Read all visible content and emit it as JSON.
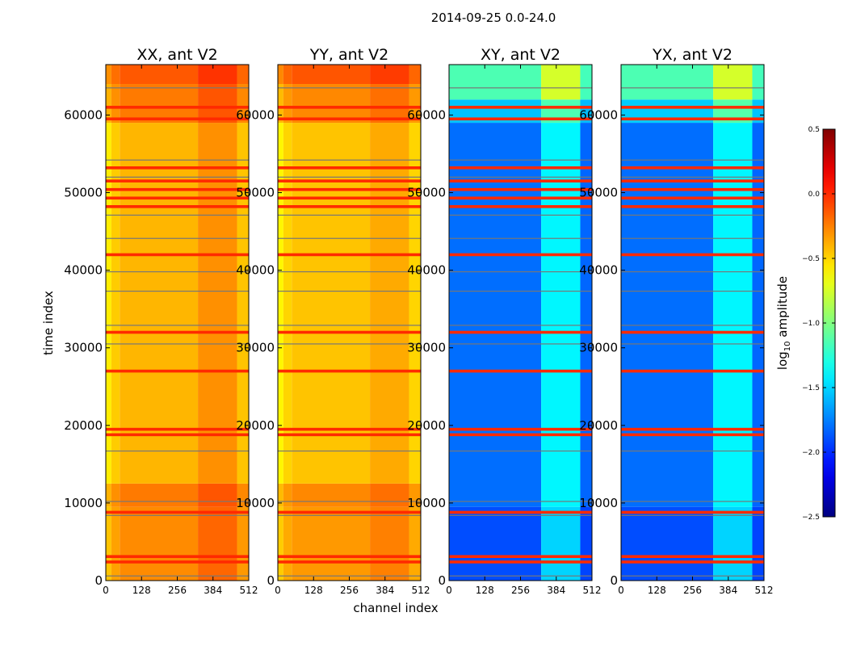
{
  "figure": {
    "suptitle": "2014-09-25 0.0-24.0",
    "ylabel": "time index",
    "xlabel": "channel index"
  },
  "colorbar": {
    "label_main": "amplitude",
    "label_prefix": "log",
    "label_sub": "10",
    "ticks": [
      0.5,
      0.0,
      -0.5,
      -1.0,
      -1.5,
      -2.0,
      -2.5
    ],
    "tick_labels": [
      "0.5",
      "0.0",
      "−0.5",
      "−1.0",
      "−1.5",
      "−2.0",
      "−2.5"
    ],
    "vmin": -2.5,
    "vmax": 0.5,
    "colormap": "jet"
  },
  "chart_data": [
    {
      "type": "heatmap",
      "title": "XX, ant V2",
      "xlabel": "",
      "ylabel": "time index",
      "xlim": [
        0,
        512
      ],
      "ylim": [
        0,
        66500
      ],
      "x_ticks": [
        0,
        128,
        256,
        384,
        512
      ],
      "y_ticks": [
        0,
        10000,
        20000,
        30000,
        40000,
        50000,
        60000
      ],
      "channel_bands": [
        {
          "from": 0,
          "to": 20,
          "value": -0.75
        },
        {
          "from": 20,
          "to": 50,
          "value": -0.55
        },
        {
          "from": 50,
          "to": 330,
          "value": -0.42
        },
        {
          "from": 330,
          "to": 470,
          "value": -0.2
        },
        {
          "from": 470,
          "to": 512,
          "value": -0.5
        }
      ],
      "time_bands": [
        {
          "from": 0,
          "to": 9500,
          "value": -0.15
        },
        {
          "from": 9500,
          "to": 12500,
          "value": -0.05
        },
        {
          "from": 12500,
          "to": 59000,
          "value": -0.4
        },
        {
          "from": 59000,
          "to": 64000,
          "value": -0.05
        },
        {
          "from": 64000,
          "to": 66500,
          "value": 0.15
        }
      ]
    },
    {
      "type": "heatmap",
      "title": "YY, ant V2",
      "xlabel": "channel index",
      "ylabel": "",
      "xlim": [
        0,
        512
      ],
      "ylim": [
        0,
        66500
      ],
      "x_ticks": [
        0,
        128,
        256,
        384,
        512
      ],
      "y_ticks": [
        0,
        10000,
        20000,
        30000,
        40000,
        50000,
        60000
      ],
      "channel_bands": [
        {
          "from": 0,
          "to": 20,
          "value": -0.75
        },
        {
          "from": 20,
          "to": 50,
          "value": -0.55
        },
        {
          "from": 50,
          "to": 330,
          "value": -0.45
        },
        {
          "from": 330,
          "to": 470,
          "value": -0.3
        },
        {
          "from": 470,
          "to": 512,
          "value": -0.55
        }
      ],
      "time_bands": [
        {
          "from": 0,
          "to": 9500,
          "value": -0.2
        },
        {
          "from": 9500,
          "to": 12500,
          "value": -0.1
        },
        {
          "from": 12500,
          "to": 59000,
          "value": -0.45
        },
        {
          "from": 59000,
          "to": 64000,
          "value": -0.1
        },
        {
          "from": 64000,
          "to": 66500,
          "value": 0.2
        }
      ]
    },
    {
      "type": "heatmap",
      "title": "XY, ant V2",
      "xlabel": "",
      "ylabel": "",
      "xlim": [
        0,
        512
      ],
      "ylim": [
        0,
        66500
      ],
      "x_ticks": [
        0,
        128,
        256,
        384,
        512
      ],
      "y_ticks": [
        0,
        10000,
        20000,
        30000,
        40000,
        50000,
        60000
      ],
      "channel_bands": [
        {
          "from": 0,
          "to": 330,
          "value": -1.85
        },
        {
          "from": 330,
          "to": 470,
          "value": -1.05
        },
        {
          "from": 470,
          "to": 512,
          "value": -1.9
        }
      ],
      "time_bands": [
        {
          "from": 0,
          "to": 9500,
          "value": -1.95
        },
        {
          "from": 9500,
          "to": 59000,
          "value": -1.75
        },
        {
          "from": 59000,
          "to": 62000,
          "value": -1.25
        },
        {
          "from": 62000,
          "to": 66500,
          "value": -0.45
        }
      ]
    },
    {
      "type": "heatmap",
      "title": "YX, ant V2",
      "xlabel": "",
      "ylabel": "",
      "xlim": [
        0,
        512
      ],
      "ylim": [
        0,
        66500
      ],
      "x_ticks": [
        0,
        128,
        256,
        384,
        512
      ],
      "y_ticks": [
        0,
        10000,
        20000,
        30000,
        40000,
        50000,
        60000
      ],
      "channel_bands": [
        {
          "from": 0,
          "to": 330,
          "value": -1.85
        },
        {
          "from": 330,
          "to": 470,
          "value": -1.05
        },
        {
          "from": 470,
          "to": 512,
          "value": -1.9
        }
      ],
      "time_bands": [
        {
          "from": 0,
          "to": 9500,
          "value": -1.95
        },
        {
          "from": 9500,
          "to": 59000,
          "value": -1.75
        },
        {
          "from": 59000,
          "to": 62000,
          "value": -1.2
        },
        {
          "from": 62000,
          "to": 66500,
          "value": -0.45
        }
      ]
    }
  ],
  "flagged_rows": [
    {
      "time": 2400,
      "value": 0.0
    },
    {
      "time": 3100,
      "value": 0.0
    },
    {
      "time": 8800,
      "value": 0.0
    },
    {
      "time": 18800,
      "value": 0.0
    },
    {
      "time": 19500,
      "value": 0.0
    },
    {
      "time": 27000,
      "value": 0.0
    },
    {
      "time": 32000,
      "value": 0.0
    },
    {
      "time": 42000,
      "value": 0.0
    },
    {
      "time": 48200,
      "value": 0.0
    },
    {
      "time": 49300,
      "value": 0.0
    },
    {
      "time": 50400,
      "value": 0.0
    },
    {
      "time": 51500,
      "value": 0.0
    },
    {
      "time": 53200,
      "value": 0.0
    },
    {
      "time": 59500,
      "value": 0.0
    },
    {
      "time": 61000,
      "value": 0.0
    }
  ],
  "gray_rows": [
    600,
    8400,
    10200,
    16700,
    30500,
    32900,
    37300,
    39800,
    44100,
    47100,
    52000,
    54200,
    63500
  ]
}
